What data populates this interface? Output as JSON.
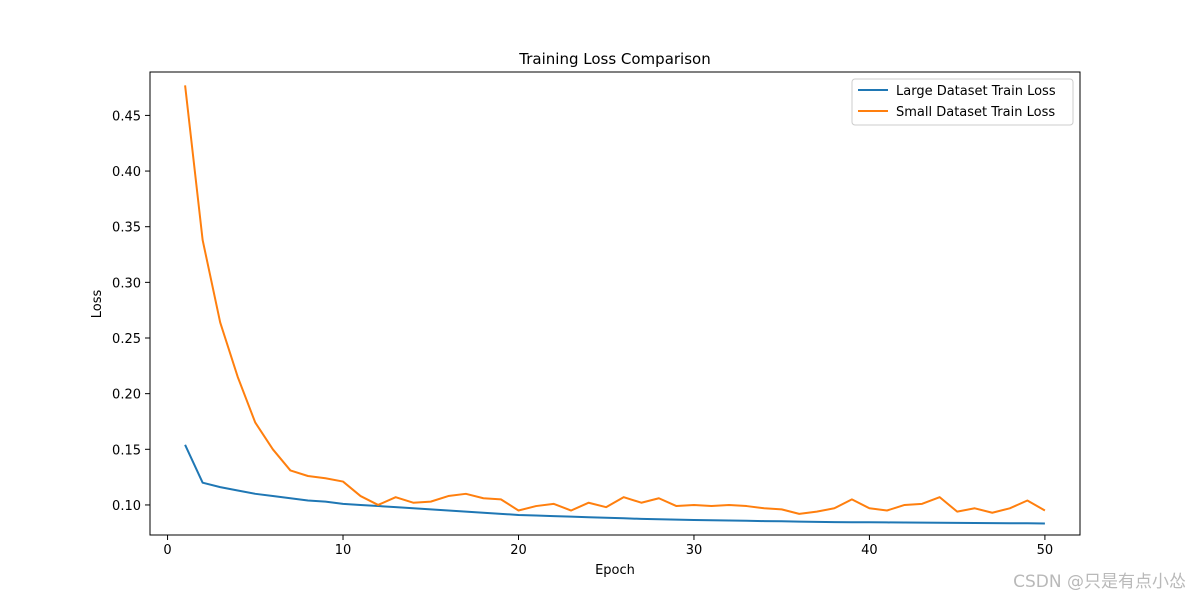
{
  "chart_data": {
    "type": "line",
    "title": "Training Loss Comparison",
    "xlabel": "Epoch",
    "ylabel": "Loss",
    "xlim": [
      -1,
      52
    ],
    "ylim": [
      0.073,
      0.489
    ],
    "xticks": [
      0,
      10,
      20,
      30,
      40,
      50
    ],
    "yticks": [
      0.1,
      0.15,
      0.2,
      0.25,
      0.3,
      0.35,
      0.4,
      0.45
    ],
    "xtick_labels": [
      "0",
      "10",
      "20",
      "30",
      "40",
      "50"
    ],
    "ytick_labels": [
      "0.10",
      "0.15",
      "0.20",
      "0.25",
      "0.30",
      "0.35",
      "0.40",
      "0.45"
    ],
    "grid": false,
    "legend_position": "top-right",
    "x": [
      1,
      2,
      3,
      4,
      5,
      6,
      7,
      8,
      9,
      10,
      11,
      12,
      13,
      14,
      15,
      16,
      17,
      18,
      19,
      20,
      21,
      22,
      23,
      24,
      25,
      26,
      27,
      28,
      29,
      30,
      31,
      32,
      33,
      34,
      35,
      36,
      37,
      38,
      39,
      40,
      41,
      42,
      43,
      44,
      45,
      46,
      47,
      48,
      49,
      50
    ],
    "series": [
      {
        "name": "Large Dataset Train Loss",
        "color": "#1f77b4",
        "values": [
          0.154,
          0.12,
          0.116,
          0.113,
          0.11,
          0.108,
          0.106,
          0.104,
          0.103,
          0.101,
          0.1,
          0.099,
          0.098,
          0.097,
          0.096,
          0.095,
          0.094,
          0.093,
          0.092,
          0.091,
          0.0905,
          0.09,
          0.0895,
          0.089,
          0.0885,
          0.088,
          0.0875,
          0.0872,
          0.0868,
          0.0865,
          0.0862,
          0.086,
          0.0858,
          0.0855,
          0.0853,
          0.085,
          0.0848,
          0.0846,
          0.0845,
          0.0844,
          0.0843,
          0.0842,
          0.0841,
          0.084,
          0.0839,
          0.0838,
          0.0837,
          0.0836,
          0.0835,
          0.0833
        ]
      },
      {
        "name": "Small Dataset Train Loss",
        "color": "#ff7f0e",
        "values": [
          0.477,
          0.338,
          0.264,
          0.215,
          0.174,
          0.15,
          0.131,
          0.126,
          0.124,
          0.121,
          0.108,
          0.1,
          0.107,
          0.102,
          0.103,
          0.108,
          0.11,
          0.106,
          0.105,
          0.095,
          0.099,
          0.101,
          0.095,
          0.102,
          0.098,
          0.107,
          0.102,
          0.106,
          0.099,
          0.1,
          0.099,
          0.1,
          0.099,
          0.097,
          0.096,
          0.092,
          0.094,
          0.097,
          0.105,
          0.097,
          0.095,
          0.1,
          0.101,
          0.107,
          0.094,
          0.097,
          0.093,
          0.097,
          0.104,
          0.095
        ]
      }
    ]
  },
  "watermark": "CSDN @只是有点小怂"
}
